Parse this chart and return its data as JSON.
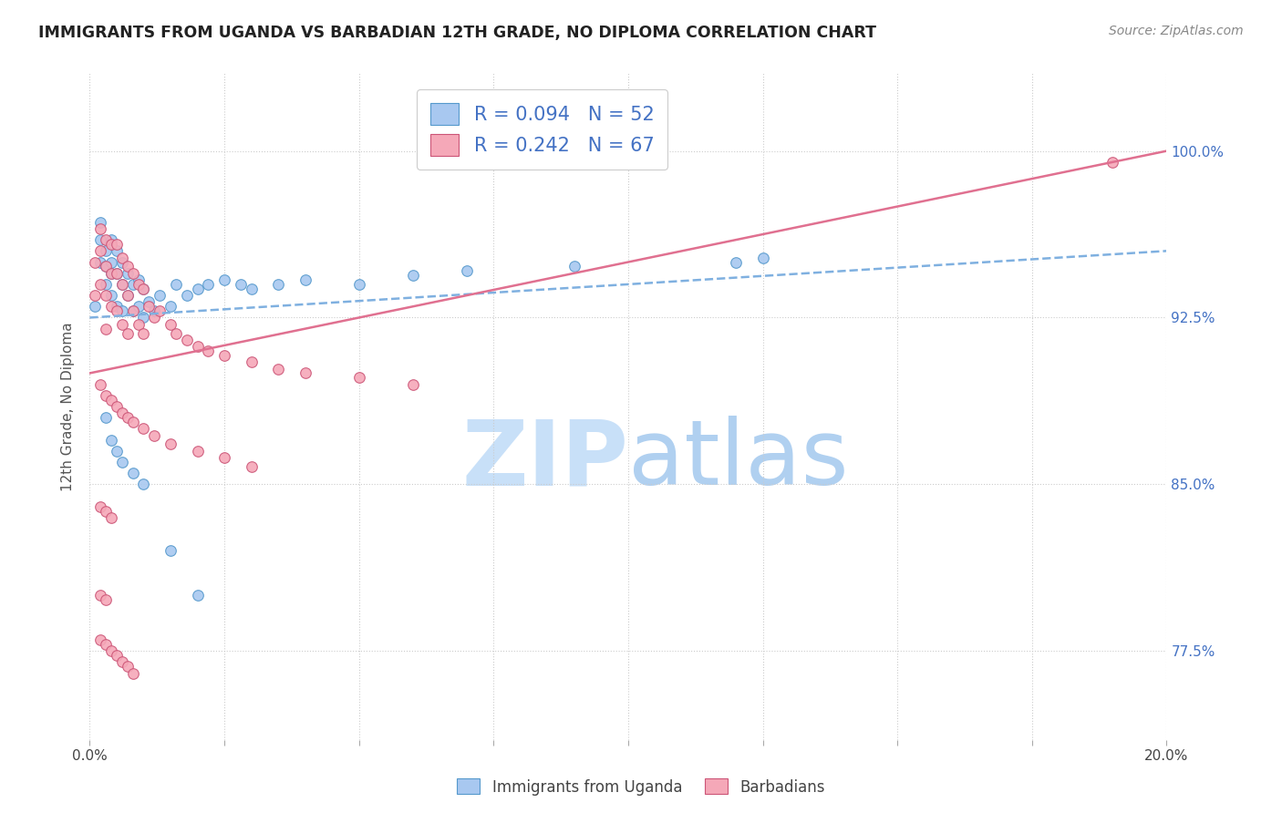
{
  "title": "IMMIGRANTS FROM UGANDA VS BARBADIAN 12TH GRADE, NO DIPLOMA CORRELATION CHART",
  "source": "Source: ZipAtlas.com",
  "ylabel": "12th Grade, No Diploma",
  "ytick_labels": [
    "77.5%",
    "85.0%",
    "92.5%",
    "100.0%"
  ],
  "ytick_values": [
    0.775,
    0.85,
    0.925,
    1.0
  ],
  "xlim": [
    0.0,
    0.2
  ],
  "ylim": [
    0.735,
    1.035
  ],
  "legend_label1": "Immigrants from Uganda",
  "legend_label2": "Barbadians",
  "R1": 0.094,
  "N1": 52,
  "R2": 0.242,
  "N2": 67,
  "color1_face": "#a8c8f0",
  "color1_edge": "#5599cc",
  "color2_face": "#f5a8b8",
  "color2_edge": "#cc5577",
  "color_blue_text": "#4472c4",
  "color_line1": "#7fb0e0",
  "color_line2": "#e07090",
  "watermark_zip_color": "#c8e0f8",
  "watermark_atlas_color": "#b0d0f0",
  "legend1_line": "R = 0.094   N = 52",
  "legend2_line": "R = 0.242   N = 67",
  "trend1_x0": 0.0,
  "trend1_y0": 0.925,
  "trend1_x1": 0.2,
  "trend1_y1": 0.955,
  "trend2_x0": 0.0,
  "trend2_y0": 0.9,
  "trend2_x1": 0.2,
  "trend2_y1": 1.0,
  "uganda_x": [
    0.001,
    0.002,
    0.002,
    0.002,
    0.003,
    0.003,
    0.003,
    0.004,
    0.004,
    0.004,
    0.004,
    0.005,
    0.005,
    0.005,
    0.006,
    0.006,
    0.006,
    0.007,
    0.007,
    0.008,
    0.008,
    0.009,
    0.009,
    0.01,
    0.01,
    0.011,
    0.012,
    0.013,
    0.015,
    0.016,
    0.018,
    0.02,
    0.022,
    0.025,
    0.028,
    0.03,
    0.035,
    0.04,
    0.05,
    0.06,
    0.07,
    0.09,
    0.12,
    0.125,
    0.003,
    0.004,
    0.005,
    0.006,
    0.008,
    0.01,
    0.015,
    0.02
  ],
  "uganda_y": [
    0.93,
    0.968,
    0.96,
    0.95,
    0.955,
    0.948,
    0.94,
    0.96,
    0.95,
    0.945,
    0.935,
    0.955,
    0.945,
    0.93,
    0.95,
    0.94,
    0.928,
    0.945,
    0.935,
    0.94,
    0.928,
    0.942,
    0.93,
    0.938,
    0.925,
    0.932,
    0.928,
    0.935,
    0.93,
    0.94,
    0.935,
    0.938,
    0.94,
    0.942,
    0.94,
    0.938,
    0.94,
    0.942,
    0.94,
    0.944,
    0.946,
    0.948,
    0.95,
    0.952,
    0.88,
    0.87,
    0.865,
    0.86,
    0.855,
    0.85,
    0.82,
    0.8
  ],
  "barbadian_x": [
    0.001,
    0.001,
    0.002,
    0.002,
    0.002,
    0.003,
    0.003,
    0.003,
    0.003,
    0.004,
    0.004,
    0.004,
    0.005,
    0.005,
    0.005,
    0.006,
    0.006,
    0.006,
    0.007,
    0.007,
    0.007,
    0.008,
    0.008,
    0.009,
    0.009,
    0.01,
    0.01,
    0.011,
    0.012,
    0.013,
    0.015,
    0.016,
    0.018,
    0.02,
    0.022,
    0.025,
    0.03,
    0.035,
    0.04,
    0.05,
    0.06,
    0.002,
    0.003,
    0.004,
    0.005,
    0.006,
    0.007,
    0.008,
    0.01,
    0.012,
    0.015,
    0.02,
    0.025,
    0.03,
    0.002,
    0.003,
    0.004,
    0.002,
    0.003,
    0.19,
    0.002,
    0.003,
    0.004,
    0.005,
    0.006,
    0.007,
    0.008
  ],
  "barbadian_y": [
    0.95,
    0.935,
    0.965,
    0.955,
    0.94,
    0.96,
    0.948,
    0.935,
    0.92,
    0.958,
    0.945,
    0.93,
    0.958,
    0.945,
    0.928,
    0.952,
    0.94,
    0.922,
    0.948,
    0.935,
    0.918,
    0.945,
    0.928,
    0.94,
    0.922,
    0.938,
    0.918,
    0.93,
    0.925,
    0.928,
    0.922,
    0.918,
    0.915,
    0.912,
    0.91,
    0.908,
    0.905,
    0.902,
    0.9,
    0.898,
    0.895,
    0.895,
    0.89,
    0.888,
    0.885,
    0.882,
    0.88,
    0.878,
    0.875,
    0.872,
    0.868,
    0.865,
    0.862,
    0.858,
    0.84,
    0.838,
    0.835,
    0.8,
    0.798,
    0.995,
    0.78,
    0.778,
    0.775,
    0.773,
    0.77,
    0.768,
    0.765
  ]
}
